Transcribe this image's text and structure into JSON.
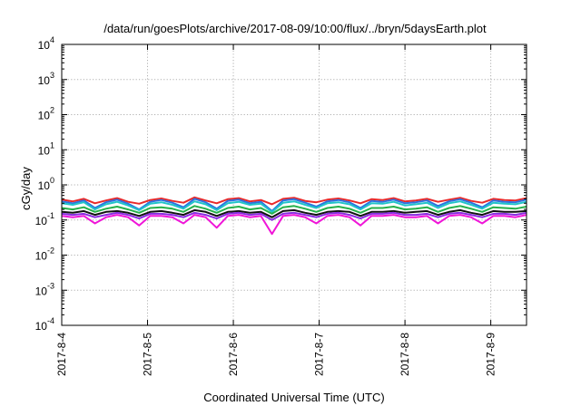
{
  "chart_data": {
    "type": "line",
    "title": "/data/run/goesPlots/archive/2017-08-09/10:00/flux/../bryn/5daysEarth.plot",
    "xlabel": "Coordinated Universal Time (UTC)",
    "ylabel": "cGy/day",
    "yscale": "log",
    "ylim": [
      0.0001,
      10000
    ],
    "y_ticks": [
      {
        "base": "10",
        "exp": "-4",
        "value": 0.0001
      },
      {
        "base": "10",
        "exp": "-3",
        "value": 0.001
      },
      {
        "base": "10",
        "exp": "-2",
        "value": 0.01
      },
      {
        "base": "10",
        "exp": "-1",
        "value": 0.1
      },
      {
        "base": "10",
        "exp": "0",
        "value": 1
      },
      {
        "base": "10",
        "exp": "1",
        "value": 10
      },
      {
        "base": "10",
        "exp": "2",
        "value": 100
      },
      {
        "base": "10",
        "exp": "3",
        "value": 1000
      },
      {
        "base": "10",
        "exp": "4",
        "value": 10000
      }
    ],
    "xlim": [
      "2017-08-04",
      "2017-08-09 10:00"
    ],
    "x_ticks": [
      "2017-8-4",
      "2017-8-5",
      "2017-8-6",
      "2017-8-7",
      "2017-8-8",
      "2017-8-9"
    ],
    "grid": true,
    "series": [
      {
        "color": "#e8292a",
        "values": [
          0.38,
          0.34,
          0.4,
          0.3,
          0.36,
          0.42,
          0.33,
          0.29,
          0.37,
          0.41,
          0.35,
          0.31,
          0.44,
          0.36,
          0.3,
          0.39,
          0.42,
          0.34,
          0.37,
          0.28,
          0.4,
          0.43,
          0.35,
          0.32,
          0.38,
          0.41,
          0.36,
          0.3,
          0.39,
          0.37,
          0.42,
          0.34,
          0.36,
          0.4,
          0.33,
          0.38,
          0.43,
          0.35,
          0.31,
          0.4,
          0.37,
          0.36,
          0.42
        ]
      },
      {
        "color": "#2b73e0",
        "values": [
          0.34,
          0.3,
          0.36,
          0.22,
          0.32,
          0.38,
          0.29,
          0.2,
          0.33,
          0.37,
          0.31,
          0.23,
          0.4,
          0.32,
          0.21,
          0.35,
          0.38,
          0.3,
          0.33,
          0.18,
          0.36,
          0.39,
          0.31,
          0.24,
          0.34,
          0.37,
          0.32,
          0.22,
          0.35,
          0.33,
          0.38,
          0.3,
          0.32,
          0.36,
          0.25,
          0.34,
          0.39,
          0.31,
          0.23,
          0.36,
          0.33,
          0.32,
          0.38
        ]
      },
      {
        "color": "#21c4c8",
        "values": [
          0.3,
          0.27,
          0.32,
          0.2,
          0.28,
          0.33,
          0.26,
          0.19,
          0.29,
          0.32,
          0.27,
          0.21,
          0.34,
          0.28,
          0.19,
          0.3,
          0.33,
          0.27,
          0.29,
          0.17,
          0.31,
          0.34,
          0.27,
          0.22,
          0.3,
          0.32,
          0.28,
          0.2,
          0.3,
          0.29,
          0.33,
          0.26,
          0.28,
          0.31,
          0.22,
          0.3,
          0.34,
          0.27,
          0.21,
          0.31,
          0.29,
          0.28,
          0.33
        ]
      },
      {
        "color": "#25b04a",
        "values": [
          0.22,
          0.2,
          0.23,
          0.17,
          0.21,
          0.24,
          0.2,
          0.16,
          0.22,
          0.23,
          0.21,
          0.17,
          0.25,
          0.21,
          0.16,
          0.22,
          0.24,
          0.2,
          0.22,
          0.15,
          0.23,
          0.25,
          0.21,
          0.17,
          0.22,
          0.24,
          0.21,
          0.16,
          0.22,
          0.22,
          0.24,
          0.2,
          0.21,
          0.23,
          0.17,
          0.22,
          0.25,
          0.21,
          0.17,
          0.23,
          0.22,
          0.21,
          0.24
        ]
      },
      {
        "color": "#111111",
        "values": [
          0.17,
          0.16,
          0.18,
          0.14,
          0.17,
          0.18,
          0.16,
          0.13,
          0.17,
          0.18,
          0.16,
          0.14,
          0.19,
          0.17,
          0.13,
          0.17,
          0.18,
          0.16,
          0.17,
          0.12,
          0.18,
          0.19,
          0.16,
          0.14,
          0.17,
          0.18,
          0.17,
          0.13,
          0.17,
          0.17,
          0.18,
          0.16,
          0.17,
          0.18,
          0.14,
          0.17,
          0.19,
          0.16,
          0.14,
          0.18,
          0.17,
          0.17,
          0.18
        ]
      },
      {
        "color": "#8a2be2",
        "values": [
          0.15,
          0.14,
          0.15,
          0.12,
          0.14,
          0.16,
          0.14,
          0.11,
          0.15,
          0.15,
          0.14,
          0.12,
          0.16,
          0.14,
          0.11,
          0.15,
          0.16,
          0.14,
          0.15,
          0.1,
          0.15,
          0.16,
          0.14,
          0.12,
          0.15,
          0.16,
          0.14,
          0.11,
          0.15,
          0.15,
          0.16,
          0.14,
          0.14,
          0.15,
          0.12,
          0.15,
          0.16,
          0.14,
          0.12,
          0.15,
          0.15,
          0.14,
          0.16
        ]
      },
      {
        "color": "#f016d8",
        "values": [
          0.13,
          0.12,
          0.13,
          0.08,
          0.12,
          0.14,
          0.12,
          0.07,
          0.13,
          0.13,
          0.12,
          0.08,
          0.14,
          0.12,
          0.06,
          0.13,
          0.14,
          0.12,
          0.13,
          0.04,
          0.13,
          0.14,
          0.12,
          0.08,
          0.13,
          0.14,
          0.12,
          0.07,
          0.13,
          0.13,
          0.14,
          0.12,
          0.12,
          0.13,
          0.08,
          0.13,
          0.14,
          0.12,
          0.08,
          0.13,
          0.13,
          0.12,
          0.14
        ]
      }
    ]
  }
}
